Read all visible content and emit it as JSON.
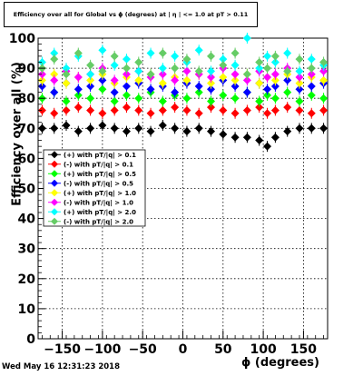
{
  "chart_data": {
    "type": "scatter",
    "title": "Efficiency over all for Global vs ϕ (degrees) at | η | <= 1.0 at pT > 0.11",
    "xlabel": "ϕ (degrees)",
    "ylabel": "Efficiency over all (%)",
    "xlim": [
      -180,
      180
    ],
    "ylim": [
      0,
      100
    ],
    "x_ticks": [
      -150,
      -100,
      -50,
      0,
      50,
      100,
      150
    ],
    "y_ticks": [
      0,
      10,
      20,
      30,
      40,
      50,
      60,
      70,
      80,
      90,
      100
    ],
    "grid": true,
    "legend_position": "left-middle",
    "series": [
      {
        "name": "(+) with pT/|q| > 0.1",
        "color": "#000000",
        "marker": "diamond",
        "points": [
          [
            -175,
            70
          ],
          [
            -160,
            70
          ],
          [
            -145,
            71
          ],
          [
            -130,
            69
          ],
          [
            -115,
            70
          ],
          [
            -100,
            71
          ],
          [
            -85,
            70
          ],
          [
            -70,
            69
          ],
          [
            -55,
            70
          ],
          [
            -40,
            69
          ],
          [
            -25,
            71
          ],
          [
            -10,
            70
          ],
          [
            5,
            69
          ],
          [
            20,
            70
          ],
          [
            35,
            69
          ],
          [
            50,
            68
          ],
          [
            65,
            67
          ],
          [
            80,
            67
          ],
          [
            95,
            66
          ],
          [
            105,
            64
          ],
          [
            115,
            67
          ],
          [
            130,
            69
          ],
          [
            145,
            70
          ],
          [
            160,
            70
          ],
          [
            175,
            70
          ]
        ]
      },
      {
        "name": "(-) with pT/|q| > 0.1",
        "color": "#ff0000",
        "marker": "diamond",
        "points": [
          [
            -175,
            76
          ],
          [
            -160,
            75
          ],
          [
            -145,
            76
          ],
          [
            -130,
            77
          ],
          [
            -115,
            76
          ],
          [
            -100,
            75
          ],
          [
            -85,
            76
          ],
          [
            -70,
            77
          ],
          [
            -55,
            76
          ],
          [
            -40,
            75
          ],
          [
            -25,
            76
          ],
          [
            -10,
            77
          ],
          [
            5,
            76
          ],
          [
            20,
            75
          ],
          [
            35,
            77
          ],
          [
            50,
            76
          ],
          [
            65,
            75
          ],
          [
            80,
            76
          ],
          [
            95,
            77
          ],
          [
            105,
            75
          ],
          [
            115,
            76
          ],
          [
            130,
            77
          ],
          [
            145,
            76
          ],
          [
            160,
            75
          ],
          [
            175,
            76
          ]
        ]
      },
      {
        "name": "(+) with pT/|q| > 0.5",
        "color": "#00ff00",
        "marker": "diamond",
        "points": [
          [
            -175,
            80
          ],
          [
            -160,
            82
          ],
          [
            -145,
            79
          ],
          [
            -130,
            81
          ],
          [
            -115,
            80
          ],
          [
            -100,
            83
          ],
          [
            -85,
            79
          ],
          [
            -70,
            81
          ],
          [
            -55,
            80
          ],
          [
            -40,
            82
          ],
          [
            -25,
            79
          ],
          [
            -10,
            81
          ],
          [
            5,
            80
          ],
          [
            20,
            82
          ],
          [
            35,
            79
          ],
          [
            50,
            81
          ],
          [
            65,
            80
          ],
          [
            80,
            82
          ],
          [
            95,
            79
          ],
          [
            105,
            81
          ],
          [
            115,
            80
          ],
          [
            130,
            82
          ],
          [
            145,
            79
          ],
          [
            160,
            81
          ],
          [
            175,
            80
          ]
        ]
      },
      {
        "name": "(-) with pT/|q| > 0.5",
        "color": "#0000ff",
        "marker": "diamond",
        "points": [
          [
            -175,
            84
          ],
          [
            -160,
            82
          ],
          [
            -145,
            85
          ],
          [
            -130,
            83
          ],
          [
            -115,
            84
          ],
          [
            -100,
            86
          ],
          [
            -85,
            82
          ],
          [
            -70,
            84
          ],
          [
            -55,
            85
          ],
          [
            -40,
            83
          ],
          [
            -25,
            84
          ],
          [
            -10,
            82
          ],
          [
            5,
            85
          ],
          [
            20,
            84
          ],
          [
            35,
            83
          ],
          [
            50,
            86
          ],
          [
            65,
            84
          ],
          [
            80,
            82
          ],
          [
            95,
            85
          ],
          [
            105,
            83
          ],
          [
            115,
            84
          ],
          [
            130,
            86
          ],
          [
            145,
            83
          ],
          [
            160,
            84
          ],
          [
            175,
            85
          ]
        ]
      },
      {
        "name": "(+) with pT/|q| > 1.0",
        "color": "#ffff00",
        "marker": "diamond",
        "points": [
          [
            -175,
            86
          ],
          [
            -160,
            88
          ],
          [
            -145,
            85
          ],
          [
            -130,
            87
          ],
          [
            -115,
            86
          ],
          [
            -100,
            88
          ],
          [
            -85,
            85
          ],
          [
            -70,
            87
          ],
          [
            -55,
            86
          ],
          [
            -40,
            88
          ],
          [
            -25,
            85
          ],
          [
            -10,
            87
          ],
          [
            5,
            86
          ],
          [
            20,
            88
          ],
          [
            35,
            85
          ],
          [
            50,
            87
          ],
          [
            65,
            86
          ],
          [
            80,
            88
          ],
          [
            95,
            85
          ],
          [
            105,
            87
          ],
          [
            115,
            86
          ],
          [
            130,
            88
          ],
          [
            145,
            85
          ],
          [
            160,
            87
          ],
          [
            175,
            86
          ]
        ]
      },
      {
        "name": "(-) with pT/|q| > 1.0",
        "color": "#ff00ff",
        "marker": "diamond",
        "points": [
          [
            -175,
            88
          ],
          [
            -160,
            86
          ],
          [
            -145,
            89
          ],
          [
            -130,
            87
          ],
          [
            -115,
            88
          ],
          [
            -100,
            90
          ],
          [
            -85,
            86
          ],
          [
            -70,
            88
          ],
          [
            -55,
            89
          ],
          [
            -40,
            87
          ],
          [
            -25,
            88
          ],
          [
            -10,
            86
          ],
          [
            5,
            89
          ],
          [
            20,
            88
          ],
          [
            35,
            87
          ],
          [
            50,
            90
          ],
          [
            65,
            88
          ],
          [
            80,
            86
          ],
          [
            95,
            89
          ],
          [
            105,
            87
          ],
          [
            115,
            88
          ],
          [
            130,
            90
          ],
          [
            145,
            87
          ],
          [
            160,
            88
          ],
          [
            175,
            89
          ]
        ]
      },
      {
        "name": "(+) with pT/|q| > 2.0",
        "color": "#00ffff",
        "marker": "diamond",
        "points": [
          [
            -175,
            92
          ],
          [
            -160,
            95
          ],
          [
            -145,
            90
          ],
          [
            -130,
            94
          ],
          [
            -115,
            88
          ],
          [
            -100,
            96
          ],
          [
            -85,
            91
          ],
          [
            -70,
            93
          ],
          [
            -55,
            89
          ],
          [
            -40,
            95
          ],
          [
            -25,
            90
          ],
          [
            -10,
            94
          ],
          [
            5,
            92
          ],
          [
            20,
            96
          ],
          [
            35,
            89
          ],
          [
            50,
            93
          ],
          [
            65,
            91
          ],
          [
            80,
            100
          ],
          [
            95,
            90
          ],
          [
            105,
            94
          ],
          [
            115,
            92
          ],
          [
            130,
            95
          ],
          [
            145,
            89
          ],
          [
            160,
            93
          ],
          [
            175,
            91
          ]
        ]
      },
      {
        "name": "(-) with pT/|q| > 2.0",
        "color": "#66cc66",
        "marker": "diamond",
        "points": [
          [
            -175,
            90
          ],
          [
            -160,
            93
          ],
          [
            -145,
            88
          ],
          [
            -130,
            95
          ],
          [
            -115,
            91
          ],
          [
            -100,
            89
          ],
          [
            -85,
            94
          ],
          [
            -70,
            90
          ],
          [
            -55,
            92
          ],
          [
            -40,
            88
          ],
          [
            -25,
            95
          ],
          [
            -10,
            90
          ],
          [
            5,
            93
          ],
          [
            20,
            89
          ],
          [
            35,
            94
          ],
          [
            50,
            91
          ],
          [
            65,
            95
          ],
          [
            80,
            88
          ],
          [
            95,
            92
          ],
          [
            105,
            90
          ],
          [
            115,
            94
          ],
          [
            130,
            89
          ],
          [
            145,
            93
          ],
          [
            160,
            90
          ],
          [
            175,
            92
          ]
        ]
      }
    ]
  },
  "footer": {
    "timestamp": "Wed May 16 12:31:23 2018"
  }
}
